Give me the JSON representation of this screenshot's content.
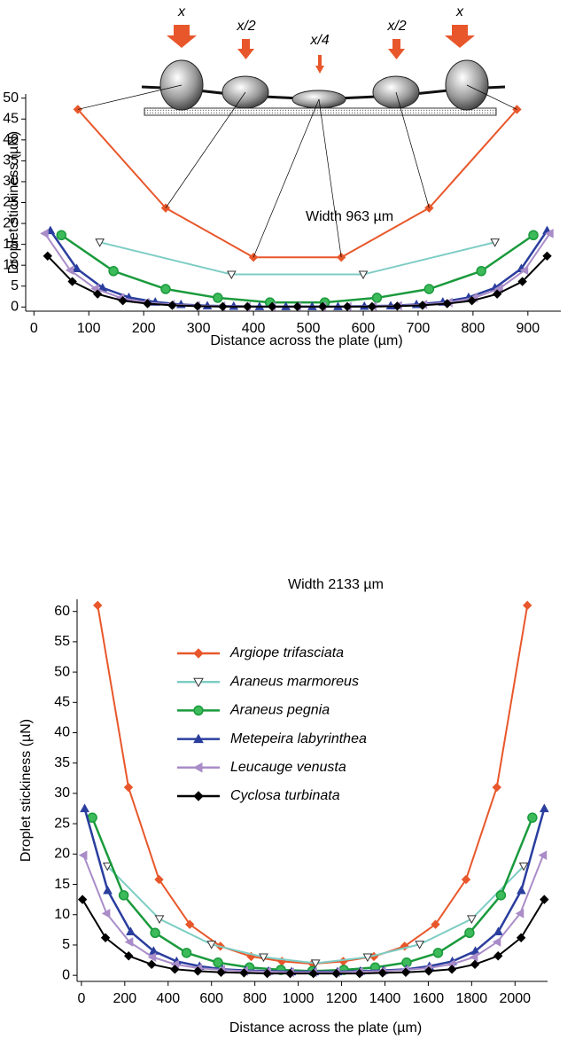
{
  "diagram": {
    "loads": [
      "x",
      "x/2",
      "x/4",
      "x/2",
      "x"
    ]
  },
  "chart_data": [
    {
      "type": "line",
      "annotation": "Width 963 µm",
      "ylabel": "Droplet stickiness (µN)",
      "xlabel": "Distance across the plate (µm)",
      "xlim": [
        -15,
        960
      ],
      "ylim": [
        -1,
        51
      ],
      "xticks": [
        0,
        100,
        200,
        300,
        400,
        500,
        600,
        700,
        800,
        900
      ],
      "yticks": [
        0,
        5,
        10,
        15,
        20,
        25,
        30,
        35,
        40,
        45,
        50
      ],
      "series": [
        {
          "color": "#e8572b",
          "marker": "diamond",
          "x": [
            80,
            240,
            400,
            560,
            720,
            880
          ],
          "values": [
            47.3,
            23.7,
            11.9,
            11.9,
            23.7,
            47.3
          ]
        },
        {
          "color": "#7ecdc4",
          "marker": "triangle-down",
          "x": [
            120,
            360,
            600,
            840
          ],
          "values": [
            15.5,
            7.8,
            7.8,
            15.5
          ]
        },
        {
          "color": "#1a9a3c",
          "marker": "circle",
          "x": [
            50,
            145,
            240,
            335,
            430,
            530,
            625,
            720,
            815,
            910
          ],
          "values": [
            17.2,
            8.6,
            4.3,
            2.2,
            1.1,
            1.1,
            2.2,
            4.3,
            8.6,
            17.2
          ]
        },
        {
          "color": "#2b3e9e",
          "marker": "triangle-up",
          "x": [
            30,
            78,
            125,
            173,
            221,
            268,
            316,
            364,
            411,
            459,
            507,
            554,
            602,
            650,
            697,
            745,
            792,
            840,
            888,
            935
          ],
          "values": [
            18.3,
            9.2,
            4.6,
            2.3,
            1.2,
            0.6,
            0.3,
            0.2,
            0.1,
            0.1,
            0.1,
            0.1,
            0.2,
            0.3,
            0.6,
            1.2,
            2.3,
            4.6,
            9.2,
            18.3
          ]
        },
        {
          "color": "#a98cc8",
          "marker": "triangle-left",
          "x": [
            20,
            66,
            112,
            158,
            204,
            250,
            296,
            342,
            388,
            434,
            480,
            526,
            572,
            618,
            664,
            710,
            756,
            802,
            848,
            894,
            940
          ],
          "values": [
            17.6,
            8.8,
            4.4,
            2.2,
            1.1,
            0.6,
            0.3,
            0.2,
            0.1,
            0.1,
            0.1,
            0.1,
            0.1,
            0.2,
            0.3,
            0.6,
            1.1,
            2.2,
            4.4,
            8.8,
            17.6
          ]
        },
        {
          "color": "#000000",
          "marker": "diamond",
          "x": [
            25,
            70,
            116,
            162,
            207,
            252,
            298,
            344,
            389,
            434,
            480,
            526,
            571,
            616,
            662,
            708,
            753,
            798,
            844,
            890,
            935
          ],
          "values": [
            12.2,
            6.1,
            3.1,
            1.5,
            0.8,
            0.4,
            0.2,
            0.1,
            0.1,
            0.1,
            0.1,
            0.1,
            0.1,
            0.1,
            0.2,
            0.4,
            0.8,
            1.5,
            3.1,
            6.1,
            12.2
          ]
        }
      ]
    },
    {
      "type": "line",
      "annotation": "Width 2133 µm",
      "legend": "upper-center",
      "ylabel": "Droplet stickiness (µN)",
      "xlabel": "Distance across the plate (µm)",
      "xlim": [
        -20,
        2150
      ],
      "ylim": [
        -1,
        62
      ],
      "xticks": [
        0,
        200,
        400,
        600,
        800,
        1000,
        1200,
        1400,
        1600,
        1800,
        2000
      ],
      "yticks": [
        0,
        5,
        10,
        15,
        20,
        25,
        30,
        35,
        40,
        45,
        50,
        55,
        60
      ],
      "series": [
        {
          "name": "Argiope trifasciata",
          "color": "#e8572b",
          "marker": "diamond",
          "x": [
            75,
            217,
            358,
            500,
            641,
            783,
            925,
            1066,
            1208,
            1349,
            1491,
            1633,
            1774,
            1916,
            2057
          ],
          "values": [
            61,
            31,
            15.8,
            8.4,
            4.8,
            3.1,
            2.3,
            1.9,
            2.3,
            3.1,
            4.8,
            8.4,
            15.8,
            31,
            61
          ]
        },
        {
          "name": "Araneus marmoreus",
          "color": "#7ecdc4",
          "marker": "triangle-down",
          "x": [
            120,
            360,
            600,
            840,
            1080,
            1320,
            1560,
            1800,
            2040
          ],
          "values": [
            18,
            9.3,
            5.1,
            3,
            2,
            3,
            5.1,
            9.3,
            18
          ]
        },
        {
          "name": "Araneus pegnia",
          "color": "#1a9a3c",
          "marker": "circle",
          "x": [
            50,
            195,
            340,
            485,
            630,
            775,
            920,
            1065,
            1210,
            1355,
            1500,
            1645,
            1790,
            1935,
            2080
          ],
          "values": [
            26,
            13.2,
            7,
            3.7,
            2.1,
            1.3,
            0.9,
            0.7,
            0.9,
            1.3,
            2.1,
            3.7,
            7,
            13.2,
            26
          ]
        },
        {
          "name": "Metepeira labyrinthea",
          "color": "#2b3e9e",
          "marker": "triangle-up",
          "x": [
            15,
            121,
            227,
            333,
            439,
            545,
            651,
            757,
            863,
            969,
            1075,
            1181,
            1287,
            1393,
            1499,
            1605,
            1711,
            1817,
            1923,
            2029,
            2135
          ],
          "values": [
            27.5,
            14,
            7.2,
            4,
            2.3,
            1.5,
            1,
            0.8,
            0.7,
            0.6,
            0.6,
            0.6,
            0.7,
            0.8,
            1,
            1.5,
            2.3,
            4,
            7.2,
            14,
            27.5
          ]
        },
        {
          "name": "Leucauge venusta",
          "color": "#a98cc8",
          "marker": "triangle-left",
          "x": [
            10,
            116,
            222,
            328,
            434,
            540,
            646,
            752,
            858,
            964,
            1070,
            1176,
            1282,
            1388,
            1494,
            1600,
            1706,
            1812,
            1918,
            2024,
            2130
          ],
          "values": [
            19.8,
            10.2,
            5.5,
            3,
            1.8,
            1.2,
            0.9,
            0.7,
            0.6,
            0.5,
            0.5,
            0.5,
            0.6,
            0.7,
            0.9,
            1.2,
            1.8,
            3,
            5.5,
            10.2,
            19.8
          ]
        },
        {
          "name": "Cyclosa turbinata",
          "color": "#000000",
          "marker": "diamond",
          "x": [
            5,
            111,
            218,
            324,
            431,
            537,
            644,
            750,
            857,
            963,
            1070,
            1176,
            1283,
            1389,
            1496,
            1602,
            1709,
            1815,
            1922,
            2028,
            2135
          ],
          "values": [
            12.5,
            6.2,
            3.2,
            1.8,
            1,
            0.7,
            0.5,
            0.4,
            0.3,
            0.3,
            0.3,
            0.3,
            0.3,
            0.4,
            0.5,
            0.7,
            1,
            1.8,
            3.2,
            6.2,
            12.5
          ]
        }
      ]
    }
  ]
}
